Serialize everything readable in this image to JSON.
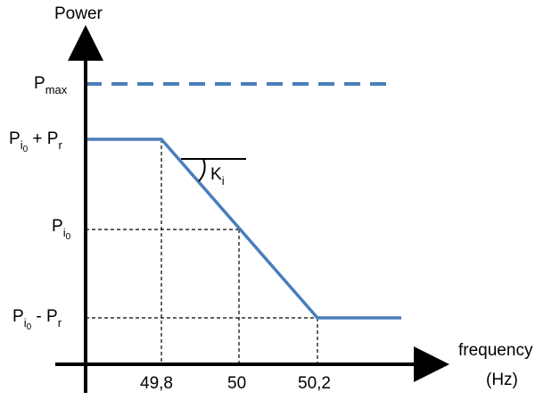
{
  "chart_data": {
    "type": "line",
    "axes": {
      "ylabel": "Power",
      "xlabel_line1": "frequency",
      "xlabel_line2": "(Hz)"
    },
    "x_ticks": [
      "49,8",
      "50",
      "50,2"
    ],
    "y_labels": {
      "pmax": {
        "base": "P",
        "sub": "max"
      },
      "pupper": {
        "base": "P",
        "sub": "i",
        "subsub": "0",
        "rest": " + P",
        "rest_sub": "r"
      },
      "pi0": {
        "base": "P",
        "sub": "i",
        "subsub": "0"
      },
      "plower": {
        "base": "P",
        "sub": "i",
        "subsub": "0",
        "rest": " - P",
        "rest_sub": "r"
      }
    },
    "slope_label": {
      "base": "K",
      "sub": "i"
    },
    "series": [
      {
        "x": [
          "start",
          "49,8",
          "50",
          "50,2",
          "end"
        ],
        "y": [
          "Pi0 + Pr",
          "Pi0 + Pr",
          "Pi0",
          "Pi0 - Pr",
          "Pi0 - Pr"
        ]
      }
    ],
    "limit_line": "Pmax",
    "colors": {
      "curve": "#4a7ebb",
      "axis": "#000000"
    }
  }
}
